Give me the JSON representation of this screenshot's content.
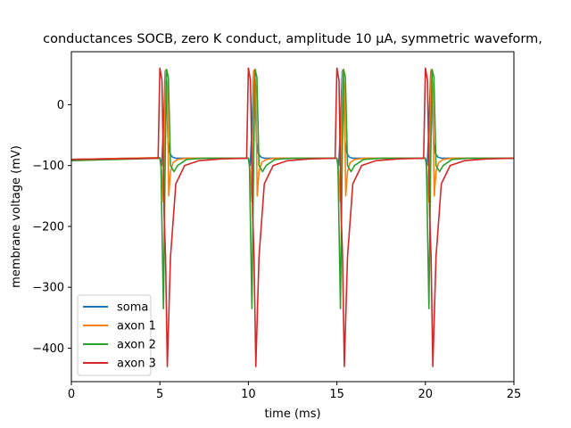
{
  "chart_data": {
    "type": "line",
    "title": "conductances SOCB, zero K conduct, amplitude 10 μA, symmetric waveform,",
    "xlabel": "time (ms)",
    "ylabel": "membrane voltage (mV)",
    "xlim": [
      0,
      25
    ],
    "ylim": [
      -455,
      87
    ],
    "xticks": [
      0,
      5,
      10,
      15,
      20,
      25
    ],
    "yticks": [
      0,
      -100,
      -200,
      -300,
      -400
    ],
    "grid": false,
    "legend_position": "lower-left",
    "series": [
      {
        "name": "soma",
        "color": "#1f77b4",
        "x": [
          0,
          5.0,
          5.1,
          5.2,
          5.3,
          5.38,
          5.46,
          5.56,
          5.7,
          5.9,
          6.2,
          7,
          10,
          10.1,
          10.2,
          10.3,
          10.38,
          10.46,
          10.56,
          10.7,
          10.9,
          11.2,
          12,
          15,
          15.1,
          15.2,
          15.3,
          15.38,
          15.46,
          15.56,
          15.7,
          15.9,
          16.2,
          17,
          20,
          20.1,
          20.2,
          20.3,
          20.38,
          20.46,
          20.56,
          20.7,
          20.9,
          21.2,
          22,
          25
        ],
        "y": [
          -90,
          -87,
          -100,
          -40,
          55,
          20,
          -60,
          -80,
          -86,
          -88,
          -88,
          -88,
          -88,
          -100,
          -40,
          55,
          20,
          -60,
          -80,
          -86,
          -88,
          -88,
          -88,
          -88,
          -100,
          -40,
          55,
          20,
          -60,
          -80,
          -86,
          -88,
          -88,
          -88,
          -88,
          -100,
          -40,
          55,
          20,
          -60,
          -80,
          -86,
          -88,
          -88,
          -88,
          -88
        ]
      },
      {
        "name": "axon 1",
        "color": "#ff7f0e",
        "x": [
          0,
          5.0,
          5.1,
          5.2,
          5.32,
          5.42,
          5.5,
          5.6,
          5.75,
          6.0,
          6.5,
          7.5,
          10,
          10.1,
          10.2,
          10.32,
          10.42,
          10.5,
          10.6,
          10.75,
          11.0,
          11.5,
          12.5,
          15,
          15.1,
          15.2,
          15.32,
          15.42,
          15.5,
          15.6,
          15.75,
          16.0,
          16.5,
          17.5,
          20,
          20.1,
          20.2,
          20.32,
          20.42,
          20.5,
          20.6,
          20.75,
          21.0,
          21.5,
          22.5,
          25
        ],
        "y": [
          -90,
          -87,
          -110,
          -160,
          57,
          30,
          -150,
          -110,
          -95,
          -90,
          -88,
          -88,
          -88,
          -110,
          -160,
          57,
          30,
          -150,
          -110,
          -95,
          -90,
          -88,
          -88,
          -88,
          -110,
          -160,
          57,
          30,
          -150,
          -110,
          -95,
          -90,
          -88,
          -88,
          -88,
          -110,
          -160,
          57,
          30,
          -150,
          -110,
          -95,
          -90,
          -88,
          -88,
          -88
        ]
      },
      {
        "name": "axon 2",
        "color": "#2ca02c",
        "x": [
          0,
          5.0,
          5.06,
          5.2,
          5.3,
          5.38,
          5.48,
          5.6,
          5.8,
          6.0,
          6.5,
          7.5,
          10,
          10.06,
          10.2,
          10.3,
          10.38,
          10.48,
          10.6,
          10.8,
          11.0,
          11.5,
          12.5,
          15,
          15.06,
          15.2,
          15.3,
          15.38,
          15.48,
          15.6,
          15.8,
          16.0,
          16.5,
          17.5,
          20,
          20.06,
          20.2,
          20.3,
          20.38,
          20.48,
          20.6,
          20.8,
          21.0,
          21.5,
          22.5,
          25
        ],
        "y": [
          -92,
          -88,
          -100,
          -335,
          -90,
          58,
          45,
          -100,
          -110,
          -100,
          -90,
          -88,
          -88,
          -100,
          -335,
          -90,
          58,
          45,
          -100,
          -110,
          -100,
          -90,
          -88,
          -88,
          -100,
          -335,
          -90,
          58,
          45,
          -100,
          -110,
          -100,
          -90,
          -88,
          -88,
          -100,
          -335,
          -90,
          58,
          45,
          -100,
          -110,
          -100,
          -90,
          -88,
          -88
        ]
      },
      {
        "name": "axon 3",
        "color": "#d62728",
        "x": [
          0,
          4.9,
          5.0,
          5.12,
          5.24,
          5.32,
          5.42,
          5.6,
          5.9,
          6.4,
          7.2,
          8.5,
          9.9,
          10.0,
          10.12,
          10.24,
          10.32,
          10.42,
          10.6,
          10.9,
          11.4,
          12.2,
          13.5,
          14.9,
          15.0,
          15.12,
          15.24,
          15.32,
          15.42,
          15.6,
          15.9,
          16.4,
          17.2,
          18.5,
          19.9,
          20.0,
          20.12,
          20.24,
          20.32,
          20.42,
          20.6,
          20.9,
          21.4,
          22.2,
          23.5,
          25
        ],
        "y": [
          -90,
          -88,
          60,
          40,
          -180,
          -250,
          -430,
          -250,
          -130,
          -100,
          -92,
          -89,
          -88,
          60,
          40,
          -180,
          -250,
          -430,
          -250,
          -130,
          -100,
          -92,
          -89,
          -88,
          60,
          40,
          -180,
          -250,
          -430,
          -250,
          -130,
          -100,
          -92,
          -89,
          -88,
          60,
          40,
          -180,
          -250,
          -430,
          -250,
          -130,
          -100,
          -92,
          -89,
          -88
        ]
      }
    ]
  }
}
